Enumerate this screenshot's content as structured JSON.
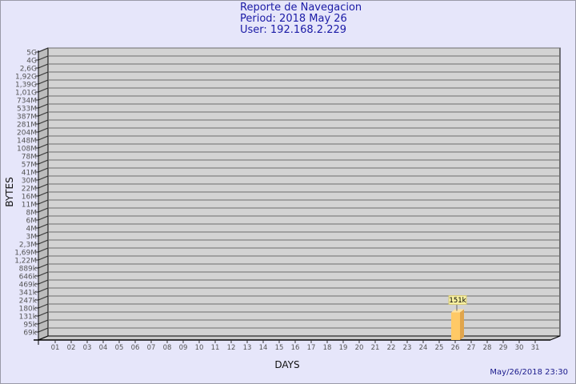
{
  "chart_data": {
    "type": "bar",
    "title": "Reporte de Navegacion",
    "subtitle_lines": [
      "Period: 2018 May 26",
      "User: 192.168.2.229"
    ],
    "xlabel": "DAYS",
    "ylabel": "BYTES",
    "y_tick_labels": [
      "5G",
      "4G",
      "2,6G",
      "1,92G",
      "1,39G",
      "1,01G",
      "734M",
      "533M",
      "387M",
      "281M",
      "204M",
      "148M",
      "108M",
      "78M",
      "57M",
      "41M",
      "30M",
      "22M",
      "16M",
      "11M",
      "8M",
      "6M",
      "4M",
      "3M",
      "2,3M",
      "1,69M",
      "1,22M",
      "889k",
      "646k",
      "469k",
      "341k",
      "247k",
      "180k",
      "131k",
      "95k",
      "69k"
    ],
    "y_scale": "log",
    "categories": [
      "01",
      "02",
      "03",
      "04",
      "05",
      "06",
      "07",
      "08",
      "09",
      "10",
      "11",
      "12",
      "13",
      "14",
      "15",
      "16",
      "17",
      "18",
      "19",
      "20",
      "21",
      "22",
      "23",
      "24",
      "25",
      "26",
      "27",
      "28",
      "29",
      "30",
      "31"
    ],
    "values": [
      null,
      null,
      null,
      null,
      null,
      null,
      null,
      null,
      null,
      null,
      null,
      null,
      null,
      null,
      null,
      null,
      null,
      null,
      null,
      null,
      null,
      null,
      null,
      null,
      null,
      151000,
      null,
      null,
      null,
      null,
      null
    ],
    "data_labels": {
      "26": "151k"
    },
    "grid": true,
    "colors": {
      "bar": "#ffc966",
      "bar_side": "#e0a54c",
      "plot": "#d3d3d3",
      "background": "#e6e6fa",
      "title": "#1a1aa6"
    }
  },
  "timestamp": "May/26/2018 23:30"
}
